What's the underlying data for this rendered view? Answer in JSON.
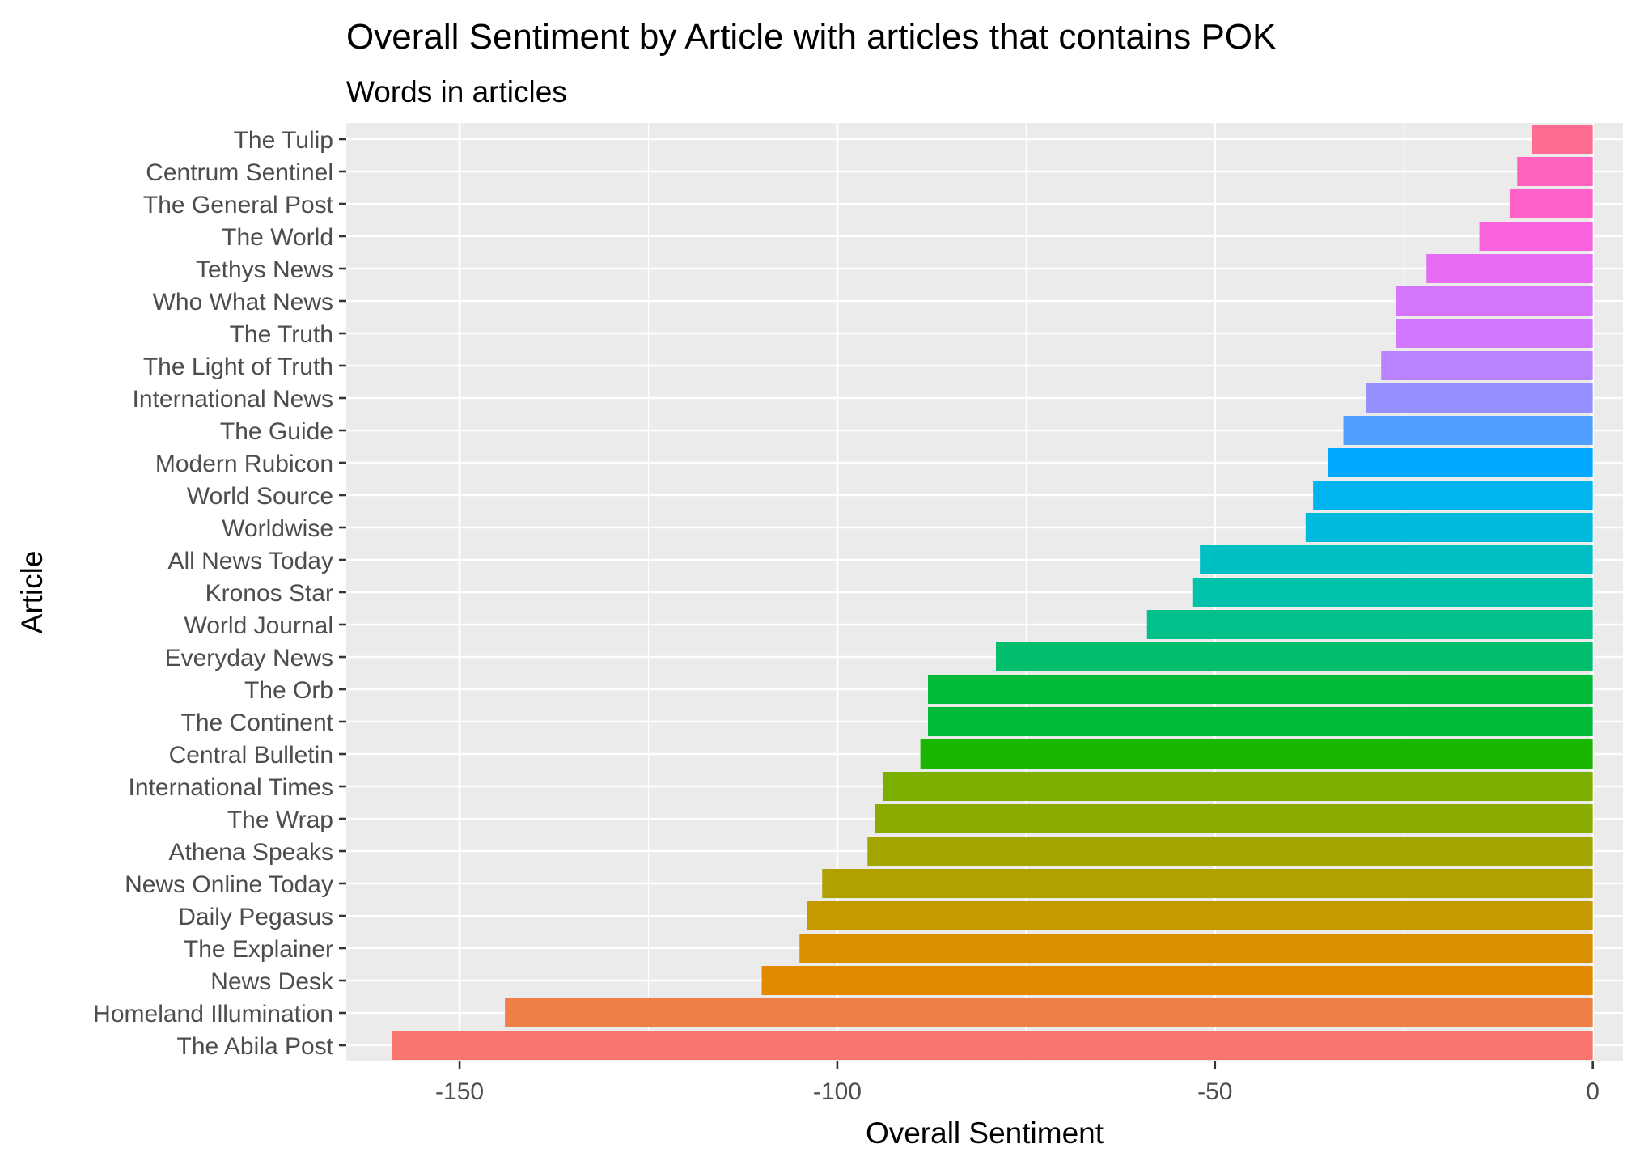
{
  "chart_data": {
    "type": "bar",
    "orientation": "horizontal",
    "title": "Overall Sentiment by Article with articles that contains POK",
    "subtitle": "Words in articles",
    "xlabel": "Overall Sentiment",
    "ylabel": "Article",
    "xlim": [
      -165,
      4
    ],
    "xticks": [
      -150,
      -100,
      -50,
      0
    ],
    "xtick_labels": [
      "-150",
      "-100",
      "-50",
      "0"
    ],
    "grid": true,
    "legend": "none",
    "panel_background": "#EBEBEB",
    "grid_color": "#FFFFFF",
    "categories": [
      "The Tulip",
      "Centrum Sentinel",
      "The General Post",
      "The World",
      "Tethys News",
      "Who What News",
      "The Truth",
      "The Light of Truth",
      "International News",
      "The Guide",
      "Modern Rubicon",
      "World Source",
      "Worldwise",
      "All News Today",
      "Kronos Star",
      "World Journal",
      "Everyday News",
      "The Orb",
      "The Continent",
      "Central Bulletin",
      "International Times",
      "The Wrap",
      "Athena Speaks",
      "News Online Today",
      "Daily Pegasus",
      "The Explainer",
      "News Desk",
      "Homeland Illumination",
      "The Abila Post"
    ],
    "values": [
      -8,
      -10,
      -11,
      -15,
      -22,
      -26,
      -26,
      -28,
      -30,
      -33,
      -35,
      -37,
      -38,
      -52,
      -53,
      -59,
      -79,
      -88,
      -88,
      -89,
      -94,
      -95,
      -96,
      -102,
      -104,
      -105,
      -110,
      -144,
      -159
    ],
    "colors": [
      "#FF6C91",
      "#FF62BC",
      "#FF61C9",
      "#F962DD",
      "#E76BF3",
      "#D575FE",
      "#D078FF",
      "#B983FF",
      "#9590FF",
      "#529EFF",
      "#00A9FF",
      "#00B4F0",
      "#00BADE",
      "#00BFC4",
      "#00C1AA",
      "#00C08B",
      "#00BE6C",
      "#00BA38",
      "#00BA38",
      "#1BB700",
      "#7CAE00",
      "#8AAB00",
      "#A3A500",
      "#B0A100",
      "#C49A00",
      "#D89000",
      "#E38900",
      "#EF7F49",
      "#F8766D"
    ]
  }
}
